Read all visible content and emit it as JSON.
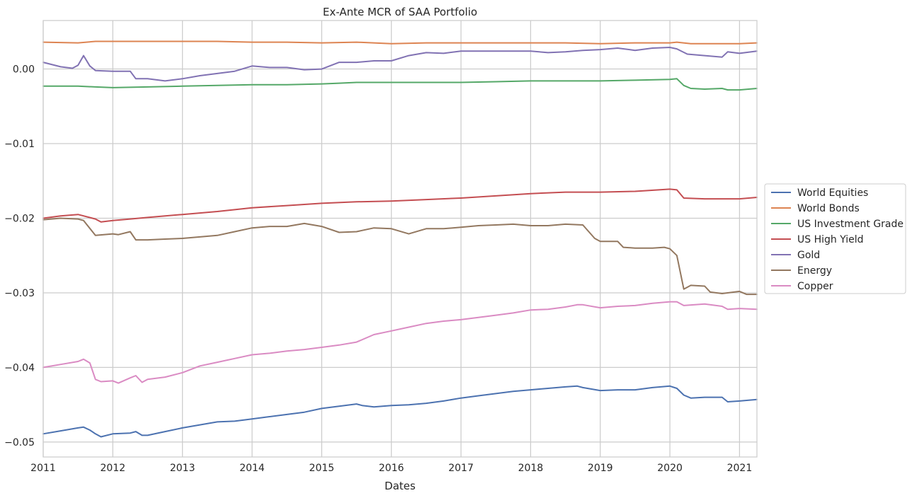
{
  "chart_data": {
    "type": "line",
    "title": "Ex-Ante MCR of SAA Portfolio",
    "xlabel": "Dates",
    "ylabel": "",
    "xlim": [
      2011.0,
      2021.25
    ],
    "ylim": [
      -0.052,
      0.0065
    ],
    "grid": true,
    "legend_position": "right-center",
    "x_ticks": [
      "2011",
      "2012",
      "2013",
      "2014",
      "2015",
      "2016",
      "2017",
      "2018",
      "2019",
      "2020",
      "2021"
    ],
    "y_ticks": [
      "0.00",
      "−0.01",
      "−0.02",
      "−0.03",
      "−0.04",
      "−0.05"
    ],
    "series": [
      {
        "name": "World Equities",
        "color": "#4c72b0",
        "points": [
          [
            2011.0,
            -0.0489
          ],
          [
            2011.25,
            -0.0485
          ],
          [
            2011.5,
            -0.0481
          ],
          [
            2011.58,
            -0.048
          ],
          [
            2011.67,
            -0.0484
          ],
          [
            2011.75,
            -0.0489
          ],
          [
            2011.83,
            -0.0493
          ],
          [
            2012.0,
            -0.0489
          ],
          [
            2012.25,
            -0.0488
          ],
          [
            2012.33,
            -0.0486
          ],
          [
            2012.42,
            -0.0491
          ],
          [
            2012.5,
            -0.0491
          ],
          [
            2012.75,
            -0.0486
          ],
          [
            2013.0,
            -0.0481
          ],
          [
            2013.25,
            -0.0477
          ],
          [
            2013.5,
            -0.0473
          ],
          [
            2013.75,
            -0.0472
          ],
          [
            2014.0,
            -0.0469
          ],
          [
            2014.25,
            -0.0466
          ],
          [
            2014.5,
            -0.0463
          ],
          [
            2014.75,
            -0.046
          ],
          [
            2015.0,
            -0.0455
          ],
          [
            2015.25,
            -0.0452
          ],
          [
            2015.5,
            -0.0449
          ],
          [
            2015.58,
            -0.0451
          ],
          [
            2015.75,
            -0.0453
          ],
          [
            2016.0,
            -0.0451
          ],
          [
            2016.25,
            -0.045
          ],
          [
            2016.5,
            -0.0448
          ],
          [
            2016.75,
            -0.0445
          ],
          [
            2017.0,
            -0.0441
          ],
          [
            2017.25,
            -0.0438
          ],
          [
            2017.5,
            -0.0435
          ],
          [
            2017.75,
            -0.0432
          ],
          [
            2018.0,
            -0.043
          ],
          [
            2018.25,
            -0.0428
          ],
          [
            2018.5,
            -0.0426
          ],
          [
            2018.67,
            -0.0425
          ],
          [
            2018.75,
            -0.0427
          ],
          [
            2019.0,
            -0.0431
          ],
          [
            2019.25,
            -0.043
          ],
          [
            2019.5,
            -0.043
          ],
          [
            2019.75,
            -0.0427
          ],
          [
            2020.0,
            -0.0425
          ],
          [
            2020.1,
            -0.0428
          ],
          [
            2020.2,
            -0.0437
          ],
          [
            2020.3,
            -0.0441
          ],
          [
            2020.5,
            -0.044
          ],
          [
            2020.75,
            -0.044
          ],
          [
            2020.83,
            -0.0446
          ],
          [
            2021.0,
            -0.0445
          ],
          [
            2021.25,
            -0.0443
          ]
        ]
      },
      {
        "name": "World Bonds",
        "color": "#dd8452",
        "points": [
          [
            2011.0,
            0.0036
          ],
          [
            2011.5,
            0.0035
          ],
          [
            2011.75,
            0.0037
          ],
          [
            2012.0,
            0.0037
          ],
          [
            2012.5,
            0.0037
          ],
          [
            2013.0,
            0.0037
          ],
          [
            2013.5,
            0.0037
          ],
          [
            2014.0,
            0.0036
          ],
          [
            2014.5,
            0.0036
          ],
          [
            2015.0,
            0.0035
          ],
          [
            2015.5,
            0.0036
          ],
          [
            2016.0,
            0.0034
          ],
          [
            2016.5,
            0.0035
          ],
          [
            2017.0,
            0.0035
          ],
          [
            2017.5,
            0.0035
          ],
          [
            2018.0,
            0.0035
          ],
          [
            2018.5,
            0.0035
          ],
          [
            2019.0,
            0.0034
          ],
          [
            2019.5,
            0.0035
          ],
          [
            2020.0,
            0.0035
          ],
          [
            2020.1,
            0.0036
          ],
          [
            2020.3,
            0.0034
          ],
          [
            2020.5,
            0.0034
          ],
          [
            2021.0,
            0.0034
          ],
          [
            2021.25,
            0.0035
          ]
        ]
      },
      {
        "name": "US Investment Grade",
        "color": "#55a868",
        "points": [
          [
            2011.0,
            -0.0023
          ],
          [
            2011.5,
            -0.0023
          ],
          [
            2011.75,
            -0.0024
          ],
          [
            2012.0,
            -0.0025
          ],
          [
            2012.5,
            -0.0024
          ],
          [
            2013.0,
            -0.0023
          ],
          [
            2013.5,
            -0.0022
          ],
          [
            2014.0,
            -0.0021
          ],
          [
            2014.5,
            -0.0021
          ],
          [
            2015.0,
            -0.002
          ],
          [
            2015.25,
            -0.0019
          ],
          [
            2015.5,
            -0.0018
          ],
          [
            2016.0,
            -0.0018
          ],
          [
            2016.5,
            -0.0018
          ],
          [
            2017.0,
            -0.0018
          ],
          [
            2017.5,
            -0.0017
          ],
          [
            2018.0,
            -0.0016
          ],
          [
            2018.5,
            -0.0016
          ],
          [
            2019.0,
            -0.0016
          ],
          [
            2019.5,
            -0.0015
          ],
          [
            2020.0,
            -0.0014
          ],
          [
            2020.1,
            -0.0013
          ],
          [
            2020.2,
            -0.0022
          ],
          [
            2020.3,
            -0.0026
          ],
          [
            2020.5,
            -0.0027
          ],
          [
            2020.75,
            -0.0026
          ],
          [
            2020.83,
            -0.0028
          ],
          [
            2021.0,
            -0.0028
          ],
          [
            2021.25,
            -0.0026
          ]
        ]
      },
      {
        "name": "US High Yield",
        "color": "#c44e52",
        "points": [
          [
            2011.0,
            -0.02
          ],
          [
            2011.25,
            -0.0197
          ],
          [
            2011.5,
            -0.0195
          ],
          [
            2011.75,
            -0.0201
          ],
          [
            2011.83,
            -0.0205
          ],
          [
            2012.0,
            -0.0203
          ],
          [
            2012.25,
            -0.0201
          ],
          [
            2012.5,
            -0.0199
          ],
          [
            2013.0,
            -0.0195
          ],
          [
            2013.5,
            -0.0191
          ],
          [
            2014.0,
            -0.0186
          ],
          [
            2014.5,
            -0.0183
          ],
          [
            2015.0,
            -0.018
          ],
          [
            2015.5,
            -0.0178
          ],
          [
            2016.0,
            -0.0177
          ],
          [
            2016.5,
            -0.0175
          ],
          [
            2017.0,
            -0.0173
          ],
          [
            2017.5,
            -0.017
          ],
          [
            2018.0,
            -0.0167
          ],
          [
            2018.5,
            -0.0165
          ],
          [
            2019.0,
            -0.0165
          ],
          [
            2019.5,
            -0.0164
          ],
          [
            2020.0,
            -0.0161
          ],
          [
            2020.1,
            -0.0162
          ],
          [
            2020.2,
            -0.0173
          ],
          [
            2020.5,
            -0.0174
          ],
          [
            2021.0,
            -0.0174
          ],
          [
            2021.25,
            -0.0172
          ]
        ]
      },
      {
        "name": "Gold",
        "color": "#8172b3",
        "points": [
          [
            2011.0,
            0.0009
          ],
          [
            2011.25,
            0.0003
          ],
          [
            2011.42,
            0.0001
          ],
          [
            2011.5,
            0.0005
          ],
          [
            2011.58,
            0.0018
          ],
          [
            2011.67,
            0.0004
          ],
          [
            2011.75,
            -0.0002
          ],
          [
            2012.0,
            -0.0003
          ],
          [
            2012.25,
            -0.0003
          ],
          [
            2012.33,
            -0.0013
          ],
          [
            2012.5,
            -0.0013
          ],
          [
            2012.75,
            -0.0016
          ],
          [
            2013.0,
            -0.0013
          ],
          [
            2013.25,
            -0.0009
          ],
          [
            2013.5,
            -0.0006
          ],
          [
            2013.75,
            -0.0003
          ],
          [
            2014.0,
            0.0004
          ],
          [
            2014.25,
            0.0002
          ],
          [
            2014.5,
            0.0002
          ],
          [
            2014.75,
            -0.0001
          ],
          [
            2015.0,
            0.0
          ],
          [
            2015.25,
            0.0009
          ],
          [
            2015.5,
            0.0009
          ],
          [
            2015.75,
            0.0011
          ],
          [
            2016.0,
            0.0011
          ],
          [
            2016.25,
            0.0018
          ],
          [
            2016.5,
            0.0022
          ],
          [
            2016.75,
            0.0021
          ],
          [
            2017.0,
            0.0024
          ],
          [
            2017.5,
            0.0024
          ],
          [
            2018.0,
            0.0024
          ],
          [
            2018.25,
            0.0022
          ],
          [
            2018.5,
            0.0023
          ],
          [
            2018.75,
            0.0025
          ],
          [
            2019.0,
            0.0026
          ],
          [
            2019.25,
            0.0028
          ],
          [
            2019.5,
            0.0025
          ],
          [
            2019.75,
            0.0028
          ],
          [
            2020.0,
            0.0029
          ],
          [
            2020.1,
            0.0027
          ],
          [
            2020.25,
            0.002
          ],
          [
            2020.5,
            0.0018
          ],
          [
            2020.75,
            0.0016
          ],
          [
            2020.83,
            0.0023
          ],
          [
            2021.0,
            0.0021
          ],
          [
            2021.25,
            0.0024
          ]
        ]
      },
      {
        "name": "Energy",
        "color": "#937860",
        "points": [
          [
            2011.0,
            -0.0202
          ],
          [
            2011.25,
            -0.02
          ],
          [
            2011.5,
            -0.0201
          ],
          [
            2011.58,
            -0.0203
          ],
          [
            2011.75,
            -0.0223
          ],
          [
            2012.0,
            -0.0221
          ],
          [
            2012.08,
            -0.0222
          ],
          [
            2012.25,
            -0.0218
          ],
          [
            2012.33,
            -0.0229
          ],
          [
            2012.5,
            -0.0229
          ],
          [
            2012.75,
            -0.0228
          ],
          [
            2013.0,
            -0.0227
          ],
          [
            2013.25,
            -0.0225
          ],
          [
            2013.5,
            -0.0223
          ],
          [
            2013.75,
            -0.0218
          ],
          [
            2014.0,
            -0.0213
          ],
          [
            2014.25,
            -0.0211
          ],
          [
            2014.5,
            -0.0211
          ],
          [
            2014.75,
            -0.0207
          ],
          [
            2015.0,
            -0.0211
          ],
          [
            2015.25,
            -0.0219
          ],
          [
            2015.5,
            -0.0218
          ],
          [
            2015.75,
            -0.0213
          ],
          [
            2016.0,
            -0.0214
          ],
          [
            2016.25,
            -0.0221
          ],
          [
            2016.5,
            -0.0214
          ],
          [
            2016.75,
            -0.0214
          ],
          [
            2017.0,
            -0.0212
          ],
          [
            2017.25,
            -0.021
          ],
          [
            2017.5,
            -0.0209
          ],
          [
            2017.75,
            -0.0208
          ],
          [
            2018.0,
            -0.021
          ],
          [
            2018.25,
            -0.021
          ],
          [
            2018.5,
            -0.0208
          ],
          [
            2018.75,
            -0.0209
          ],
          [
            2018.92,
            -0.0227
          ],
          [
            2019.0,
            -0.0231
          ],
          [
            2019.25,
            -0.0231
          ],
          [
            2019.33,
            -0.0239
          ],
          [
            2019.5,
            -0.024
          ],
          [
            2019.75,
            -0.024
          ],
          [
            2019.92,
            -0.0239
          ],
          [
            2020.0,
            -0.0241
          ],
          [
            2020.1,
            -0.025
          ],
          [
            2020.2,
            -0.0295
          ],
          [
            2020.3,
            -0.029
          ],
          [
            2020.5,
            -0.0291
          ],
          [
            2020.58,
            -0.0299
          ],
          [
            2020.75,
            -0.0301
          ],
          [
            2021.0,
            -0.0298
          ],
          [
            2021.1,
            -0.0302
          ],
          [
            2021.25,
            -0.0302
          ]
        ]
      },
      {
        "name": "Copper",
        "color": "#da8bc3",
        "points": [
          [
            2011.0,
            -0.04
          ],
          [
            2011.25,
            -0.0396
          ],
          [
            2011.5,
            -0.0392
          ],
          [
            2011.58,
            -0.0389
          ],
          [
            2011.67,
            -0.0394
          ],
          [
            2011.75,
            -0.0416
          ],
          [
            2011.83,
            -0.0419
          ],
          [
            2012.0,
            -0.0418
          ],
          [
            2012.08,
            -0.0421
          ],
          [
            2012.25,
            -0.0414
          ],
          [
            2012.33,
            -0.0411
          ],
          [
            2012.42,
            -0.042
          ],
          [
            2012.5,
            -0.0416
          ],
          [
            2012.75,
            -0.0413
          ],
          [
            2013.0,
            -0.0407
          ],
          [
            2013.25,
            -0.0398
          ],
          [
            2013.5,
            -0.0393
          ],
          [
            2013.75,
            -0.0388
          ],
          [
            2014.0,
            -0.0383
          ],
          [
            2014.25,
            -0.0381
          ],
          [
            2014.5,
            -0.0378
          ],
          [
            2014.75,
            -0.0376
          ],
          [
            2015.0,
            -0.0373
          ],
          [
            2015.25,
            -0.037
          ],
          [
            2015.5,
            -0.0366
          ],
          [
            2015.75,
            -0.0356
          ],
          [
            2016.0,
            -0.0351
          ],
          [
            2016.25,
            -0.0346
          ],
          [
            2016.5,
            -0.0341
          ],
          [
            2016.75,
            -0.0338
          ],
          [
            2017.0,
            -0.0336
          ],
          [
            2017.25,
            -0.0333
          ],
          [
            2017.5,
            -0.033
          ],
          [
            2017.75,
            -0.0327
          ],
          [
            2018.0,
            -0.0323
          ],
          [
            2018.25,
            -0.0322
          ],
          [
            2018.5,
            -0.0319
          ],
          [
            2018.67,
            -0.0316
          ],
          [
            2018.75,
            -0.0316
          ],
          [
            2019.0,
            -0.032
          ],
          [
            2019.25,
            -0.0318
          ],
          [
            2019.5,
            -0.0317
          ],
          [
            2019.75,
            -0.0314
          ],
          [
            2020.0,
            -0.0312
          ],
          [
            2020.1,
            -0.0312
          ],
          [
            2020.2,
            -0.0317
          ],
          [
            2020.5,
            -0.0315
          ],
          [
            2020.75,
            -0.0318
          ],
          [
            2020.83,
            -0.0322
          ],
          [
            2021.0,
            -0.0321
          ],
          [
            2021.25,
            -0.0322
          ]
        ]
      }
    ]
  }
}
